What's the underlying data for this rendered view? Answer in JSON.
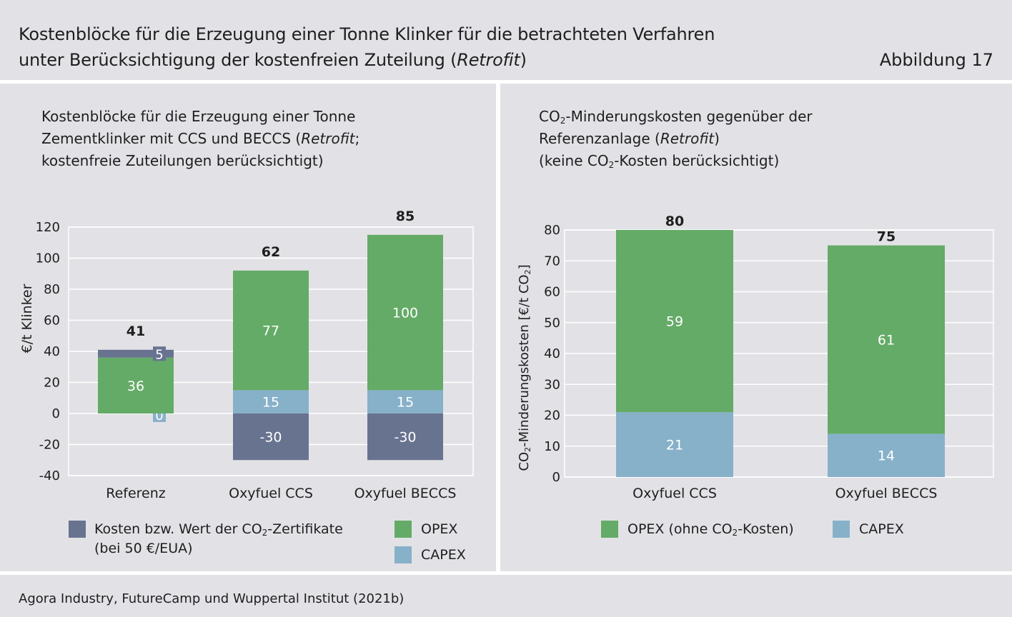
{
  "figure": {
    "title_line1": "Kostenblöcke für die Erzeugung einer Tonne Klinker für die betrachteten Verfahren",
    "title_line2_prefix": "unter Berücksichtigung der kostenfreien Zuteilung (",
    "title_line2_italic": "Retrofit",
    "title_line2_suffix": ")",
    "number": "Abbildung 17"
  },
  "colors": {
    "certificates": "#687390",
    "opex": "#64ab67",
    "capex": "#87b1c9",
    "background": "#e2e2e6",
    "white": "#ffffff"
  },
  "left_panel": {
    "title_line1": "Kostenblöcke für die Erzeugung einer Tonne",
    "title_line2_prefix": "Zementklinker mit CCS und BECCS (",
    "title_line2_italic": "Retrofit",
    "title_line2_suffix": ";",
    "title_line3": "kostenfreie Zuteilungen berücksichtigt)",
    "legend": {
      "certificates_line1_prefix": "Kosten bzw. Wert der CO",
      "certificates_line1_sub": "2",
      "certificates_line1_suffix": "-Zertifikate",
      "certificates_line2": "(bei 50 €/EUA)",
      "opex": "OPEX",
      "capex": "CAPEX"
    }
  },
  "right_panel": {
    "title_line1_prefix": "CO",
    "title_line1_sub": "2",
    "title_line1_suffix": "-Minderungskosten gegenüber der",
    "title_line2_prefix": "Referenzanlage (",
    "title_line2_italic": "Retrofit",
    "title_line2_suffix": ")",
    "title_line3_prefix": "(keine CO",
    "title_line3_sub": "2",
    "title_line3_suffix": "-Kosten berücksichtigt)",
    "legend": {
      "opex_prefix": "OPEX (ohne CO",
      "opex_sub": "2",
      "opex_suffix": "-Kosten)",
      "capex": "CAPEX"
    }
  },
  "chart_data": [
    {
      "type": "bar",
      "stacked": true,
      "categories": [
        "Referenz",
        "Oxyfuel CCS",
        "Oxyfuel BECCS"
      ],
      "ylabel": "€/t Klinker",
      "ylim": [
        -40,
        120
      ],
      "yticks": [
        -40,
        -20,
        0,
        20,
        40,
        60,
        80,
        100,
        120
      ],
      "grid": true,
      "series": [
        {
          "key": "capex",
          "values": [
            0,
            15,
            15
          ],
          "labels": [
            "0",
            "15",
            "15"
          ]
        },
        {
          "key": "opex",
          "values": [
            36,
            77,
            100
          ],
          "labels": [
            "36",
            "77",
            "100"
          ]
        },
        {
          "key": "certificates",
          "values": [
            5,
            -30,
            -30
          ],
          "labels": [
            "5",
            "-30",
            "-30"
          ]
        }
      ],
      "totals": [
        "41",
        "62",
        "85"
      ]
    },
    {
      "type": "bar",
      "stacked": true,
      "categories": [
        "Oxyfuel CCS",
        "Oxyfuel BECCS"
      ],
      "ylabel_prefix": "CO",
      "ylabel_sub": "2",
      "ylabel_mid": "-Minderungskosten [€/t CO",
      "ylabel_sub2": "2",
      "ylabel_suffix": "]",
      "ylim": [
        0,
        80
      ],
      "yticks": [
        0,
        10,
        20,
        30,
        40,
        50,
        60,
        70,
        80
      ],
      "grid": true,
      "series": [
        {
          "key": "capex",
          "values": [
            21,
            14
          ],
          "labels": [
            "21",
            "14"
          ]
        },
        {
          "key": "opex",
          "values": [
            59,
            61
          ],
          "labels": [
            "59",
            "61"
          ]
        }
      ],
      "totals": [
        "80",
        "75"
      ]
    }
  ],
  "source": "Agora Industry, FutureCamp und Wuppertal Institut  (2021b)"
}
